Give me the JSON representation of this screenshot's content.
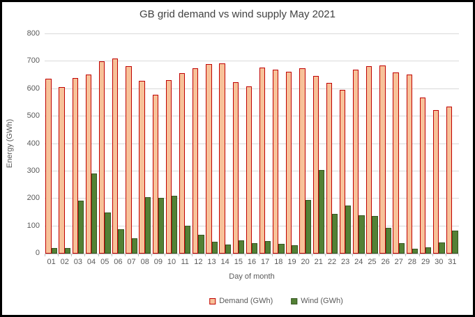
{
  "chart_data": {
    "type": "bar",
    "title": "GB grid demand vs wind supply May 2021",
    "xlabel": "Day of month",
    "ylabel": "Energy (GWh)",
    "ylim": [
      0,
      800
    ],
    "ytick_step": 100,
    "grid": true,
    "legend_position": "bottom",
    "categories": [
      "01",
      "02",
      "03",
      "04",
      "05",
      "06",
      "07",
      "08",
      "09",
      "10",
      "11",
      "12",
      "13",
      "14",
      "15",
      "16",
      "17",
      "18",
      "19",
      "20",
      "21",
      "22",
      "23",
      "24",
      "25",
      "26",
      "27",
      "28",
      "29",
      "30",
      "31"
    ],
    "series": [
      {
        "name": "Demand (GWh)",
        "fill": "#F7C299",
        "border": "#C00000",
        "values": [
          637,
          608,
          641,
          653,
          702,
          712,
          684,
          631,
          578,
          633,
          658,
          676,
          690,
          694,
          626,
          610,
          678,
          671,
          662,
          676,
          648,
          623,
          597,
          670,
          684,
          687,
          660,
          652,
          570,
          522,
          535
        ]
      },
      {
        "name": "Wind (GWh)",
        "fill": "#538135",
        "border": "#375623",
        "values": [
          20,
          20,
          192,
          291,
          150,
          89,
          57,
          206,
          203,
          210,
          102,
          68,
          43,
          33,
          48,
          39,
          45,
          36,
          30,
          196,
          305,
          146,
          175,
          140,
          138,
          93,
          37,
          17,
          22,
          40,
          84
        ]
      }
    ]
  },
  "colors": {
    "gridline": "#D9D9D9",
    "axis": "#BFBFBF",
    "tick": "#BFBFBF",
    "label_text": "#595959",
    "title_text": "#404040",
    "frame_border": "#000000",
    "background": "#FFFFFF"
  }
}
